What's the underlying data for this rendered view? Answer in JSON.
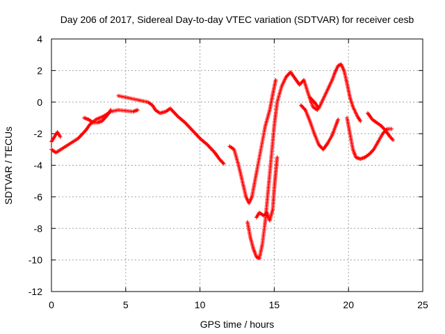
{
  "chart_data": {
    "type": "scatter",
    "title": "Day 206 of 2017, Sidereal Day-to-day VTEC variation (SDTVAR) for receiver cesb",
    "xlabel": "GPS time / hours",
    "ylabel": "SDTVAR / TECUs",
    "xlim": [
      0,
      25
    ],
    "ylim": [
      -12,
      4
    ],
    "xticks": [
      0,
      5,
      10,
      15,
      20,
      25
    ],
    "yticks": [
      -12,
      -10,
      -8,
      -6,
      -4,
      -2,
      0,
      2,
      4
    ],
    "grid": true,
    "marker": "plus",
    "color": "#ff0000",
    "series": [
      {
        "segments": [
          [
            [
              0.0,
              -3.0
            ],
            [
              0.3,
              -3.2
            ],
            [
              0.8,
              -2.9
            ],
            [
              1.3,
              -2.6
            ],
            [
              1.8,
              -2.3
            ],
            [
              2.3,
              -1.8
            ],
            [
              2.6,
              -1.4
            ],
            [
              3.0,
              -1.1
            ],
            [
              3.5,
              -0.9
            ],
            [
              4.0,
              -0.6
            ],
            [
              4.5,
              -0.5
            ],
            [
              5.0,
              -0.55
            ],
            [
              5.5,
              -0.6
            ],
            [
              5.8,
              -0.5
            ]
          ],
          [
            [
              4.5,
              0.4
            ],
            [
              5.0,
              0.3
            ],
            [
              5.5,
              0.2
            ],
            [
              6.0,
              0.1
            ],
            [
              6.5,
              0.0
            ],
            [
              6.8,
              -0.2
            ],
            [
              7.0,
              -0.5
            ],
            [
              7.3,
              -0.7
            ],
            [
              7.7,
              -0.6
            ],
            [
              8.0,
              -0.4
            ],
            [
              8.2,
              -0.6
            ],
            [
              8.5,
              -0.9
            ],
            [
              9.0,
              -1.3
            ],
            [
              9.5,
              -1.8
            ],
            [
              10.0,
              -2.3
            ],
            [
              10.5,
              -2.7
            ],
            [
              11.0,
              -3.2
            ],
            [
              11.3,
              -3.6
            ],
            [
              11.6,
              -3.9
            ]
          ],
          [
            [
              0.0,
              -2.5
            ],
            [
              0.2,
              -2.2
            ],
            [
              0.4,
              -1.9
            ],
            [
              0.6,
              -2.2
            ]
          ],
          [
            [
              2.2,
              -1.0
            ],
            [
              2.5,
              -1.1
            ],
            [
              2.8,
              -1.3
            ],
            [
              3.1,
              -1.3
            ],
            [
              3.4,
              -1.2
            ],
            [
              3.7,
              -0.9
            ],
            [
              4.0,
              -0.5
            ]
          ],
          [
            [
              12.0,
              -2.8
            ],
            [
              12.3,
              -3.0
            ],
            [
              12.6,
              -4.0
            ],
            [
              12.9,
              -5.2
            ],
            [
              13.1,
              -6.0
            ],
            [
              13.3,
              -6.4
            ],
            [
              13.5,
              -6.0
            ],
            [
              13.8,
              -4.5
            ],
            [
              14.1,
              -3.0
            ],
            [
              14.4,
              -1.5
            ],
            [
              14.7,
              -0.5
            ],
            [
              14.9,
              0.5
            ],
            [
              15.1,
              1.4
            ]
          ],
          [
            [
              13.2,
              -7.6
            ],
            [
              13.4,
              -8.6
            ],
            [
              13.6,
              -9.3
            ],
            [
              13.8,
              -9.8
            ],
            [
              14.0,
              -9.9
            ],
            [
              14.2,
              -9.0
            ],
            [
              14.4,
              -7.5
            ],
            [
              14.6,
              -5.5
            ],
            [
              14.8,
              -3.5
            ],
            [
              15.0,
              -1.5
            ],
            [
              15.2,
              0.0
            ],
            [
              15.5,
              1.0
            ],
            [
              15.8,
              1.6
            ],
            [
              16.1,
              1.9
            ],
            [
              16.4,
              1.5
            ],
            [
              16.7,
              1.1
            ],
            [
              17.0,
              1.4
            ],
            [
              17.3,
              0.5
            ],
            [
              17.6,
              -0.3
            ],
            [
              17.9,
              -0.5
            ]
          ],
          [
            [
              13.8,
              -7.3
            ],
            [
              14.0,
              -7.0
            ],
            [
              14.3,
              -7.2
            ],
            [
              14.5,
              -7.0
            ],
            [
              14.7,
              -7.5
            ],
            [
              14.9,
              -6.8
            ],
            [
              15.0,
              -5.5
            ],
            [
              15.1,
              -4.5
            ],
            [
              15.2,
              -3.5
            ]
          ],
          [
            [
              16.8,
              -0.2
            ],
            [
              17.1,
              -0.5
            ],
            [
              17.4,
              -1.2
            ],
            [
              17.7,
              -2.0
            ],
            [
              18.0,
              -2.7
            ],
            [
              18.3,
              -3.0
            ],
            [
              18.6,
              -2.6
            ],
            [
              18.9,
              -2.1
            ],
            [
              19.1,
              -1.6
            ],
            [
              19.3,
              -1.1
            ]
          ],
          [
            [
              17.4,
              0.3
            ],
            [
              17.7,
              0.0
            ],
            [
              18.0,
              -0.4
            ],
            [
              18.3,
              0.2
            ],
            [
              18.6,
              0.8
            ],
            [
              18.9,
              1.4
            ],
            [
              19.1,
              1.9
            ],
            [
              19.3,
              2.3
            ],
            [
              19.5,
              2.4
            ],
            [
              19.7,
              2.0
            ],
            [
              19.9,
              1.2
            ],
            [
              20.1,
              0.3
            ],
            [
              20.3,
              -0.3
            ],
            [
              20.6,
              -0.9
            ],
            [
              20.8,
              -1.2
            ]
          ],
          [
            [
              19.9,
              -1.0
            ],
            [
              20.1,
              -2.0
            ],
            [
              20.3,
              -3.0
            ],
            [
              20.5,
              -3.5
            ],
            [
              20.8,
              -3.6
            ],
            [
              21.1,
              -3.5
            ],
            [
              21.4,
              -3.3
            ],
            [
              21.7,
              -3.0
            ],
            [
              22.0,
              -2.5
            ],
            [
              22.3,
              -2.0
            ],
            [
              22.6,
              -1.7
            ],
            [
              22.9,
              -1.7
            ]
          ],
          [
            [
              21.3,
              -0.7
            ],
            [
              21.6,
              -1.1
            ],
            [
              21.9,
              -1.3
            ],
            [
              22.2,
              -1.5
            ],
            [
              22.5,
              -1.8
            ],
            [
              22.8,
              -2.2
            ],
            [
              23.0,
              -2.4
            ]
          ]
        ]
      }
    ]
  }
}
